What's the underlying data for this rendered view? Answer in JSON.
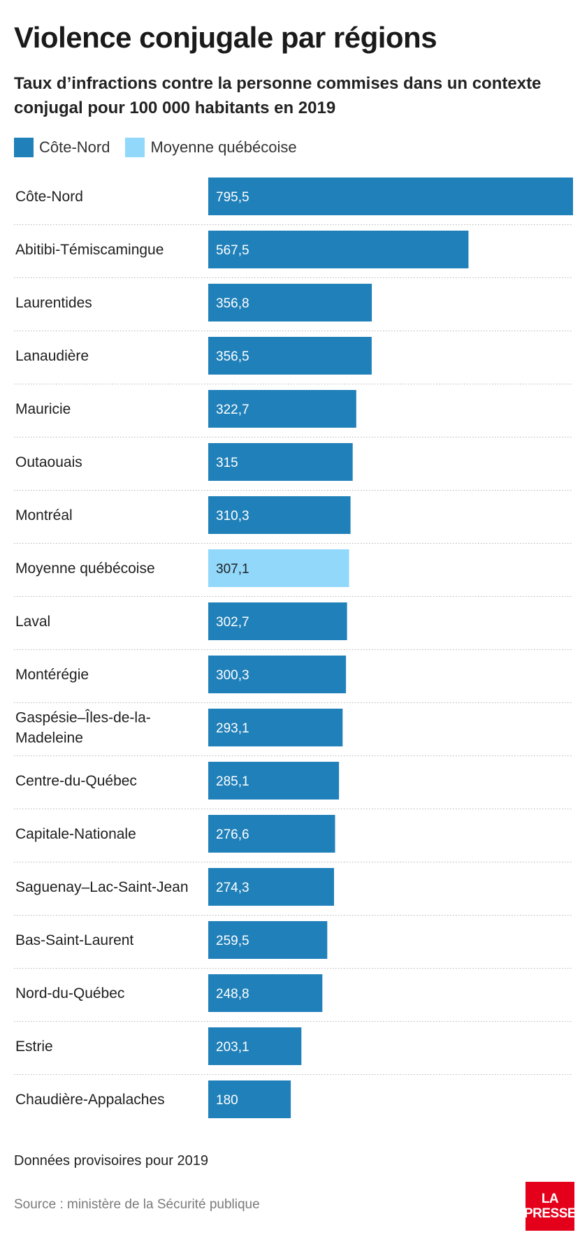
{
  "title": "Violence conjugale par régions",
  "subtitle": "Taux d’infractions contre la personne commises dans un contexte conjugal pour 100 000 habitants en 2019",
  "legend": [
    {
      "label": "Côte-Nord",
      "color": "#2080b9"
    },
    {
      "label": "Moyenne québécoise",
      "color": "#91d8fa"
    }
  ],
  "chart_data": {
    "type": "bar",
    "orientation": "horizontal",
    "categories": [
      "Côte-Nord",
      "Abitibi-Témiscamingue",
      "Laurentides",
      "Lanaudière",
      "Mauricie",
      "Outaouais",
      "Montréal",
      "Moyenne québécoise",
      "Laval",
      "Montérégie",
      "Gaspésie–Îles-de-la-Madeleine",
      "Centre-du-Québec",
      "Capitale-Nationale",
      "Saguenay–Lac-Saint-Jean",
      "Bas-Saint-Laurent",
      "Nord-du-Québec",
      "Estrie",
      "Chaudière-Appalaches"
    ],
    "category_lines": [
      [
        "Côte-Nord"
      ],
      [
        "Abitibi-Témiscamingue"
      ],
      [
        "Laurentides"
      ],
      [
        "Lanaudière"
      ],
      [
        "Mauricie"
      ],
      [
        "Outaouais"
      ],
      [
        "Montréal"
      ],
      [
        "Moyenne québécoise"
      ],
      [
        "Laval"
      ],
      [
        "Montérégie"
      ],
      [
        "Gaspésie–Îles-de-la-",
        "Madeleine"
      ],
      [
        "Centre-du-Québec"
      ],
      [
        "Capitale-Nationale"
      ],
      [
        "Saguenay–Lac-Saint-Jean"
      ],
      [
        "Bas-Saint-Laurent"
      ],
      [
        "Nord-du-Québec"
      ],
      [
        "Estrie"
      ],
      [
        "Chaudière-Appalaches"
      ]
    ],
    "values": [
      795.5,
      567.5,
      356.8,
      356.5,
      322.7,
      315,
      310.3,
      307.1,
      302.7,
      300.3,
      293.1,
      285.1,
      276.6,
      274.3,
      259.5,
      248.8,
      203.1,
      180
    ],
    "value_labels": [
      "795,5",
      "567,5",
      "356,8",
      "356,5",
      "322,7",
      "315",
      "310,3",
      "307,1",
      "302,7",
      "300,3",
      "293,1",
      "285,1",
      "276,6",
      "274,3",
      "259,5",
      "248,8",
      "203,1",
      "180"
    ],
    "highlight_category": "Moyenne québécoise",
    "color": "#2080b9",
    "highlight_color": "#91d8fa",
    "xlim": [
      0,
      795.5
    ],
    "grid": false
  },
  "note": "Données provisoires pour 2019",
  "source": "Source : ministère de la Sécurité publique",
  "logo": {
    "line1": "LA",
    "line2": "PRESSE"
  }
}
